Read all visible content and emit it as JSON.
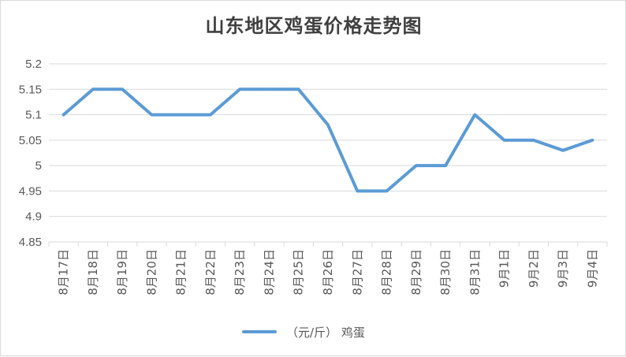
{
  "chart_data": {
    "type": "line",
    "title": "山东地区鸡蛋价格走势图",
    "xlabel": "",
    "ylabel": "",
    "categories": [
      "8月17日",
      "8月18日",
      "8月19日",
      "8月20日",
      "8月21日",
      "8月22日",
      "8月23日",
      "8月24日",
      "8月25日",
      "8月26日",
      "8月27日",
      "8月28日",
      "8月29日",
      "8月30日",
      "8月31日",
      "9月1日",
      "9月2日",
      "9月3日",
      "9月4日"
    ],
    "series": [
      {
        "name": "（元/斤） 鸡蛋",
        "values": [
          5.1,
          5.15,
          5.15,
          5.1,
          5.1,
          5.1,
          5.15,
          5.15,
          5.15,
          5.08,
          4.95,
          4.95,
          5.0,
          5.0,
          5.1,
          5.05,
          5.05,
          5.03,
          5.05
        ]
      }
    ],
    "ylim": [
      4.85,
      5.2
    ],
    "yticks": [
      4.85,
      4.9,
      4.95,
      5,
      5.05,
      5.1,
      5.15,
      5.2
    ],
    "ytick_labels": [
      "4.85",
      "4.9",
      "4.95",
      "5",
      "5.05",
      "5.1",
      "5.15",
      "5.2"
    ],
    "grid": true,
    "legend_position": "bottom",
    "colors": {
      "series": "#5b9bd5",
      "grid": "#d9d9d9",
      "text": "#595959"
    }
  }
}
